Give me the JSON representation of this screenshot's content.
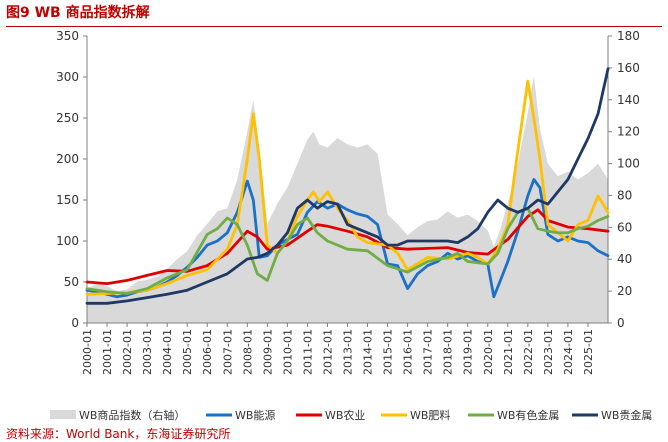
{
  "title": "图9  WB 商品指数拆解",
  "source": "资料来源：World Bank，东海证券研究所",
  "chart_data": {
    "type": "line",
    "x": [
      "2000-01",
      "2001-01",
      "2002-01",
      "2003-01",
      "2004-01",
      "2005-01",
      "2006-01",
      "2007-01",
      "2008-01",
      "2009-01",
      "2010-01",
      "2011-01",
      "2012-01",
      "2013-01",
      "2014-01",
      "2015-01",
      "2016-01",
      "2017-01",
      "2018-01",
      "2019-01",
      "2020-01",
      "2021-01",
      "2022-01",
      "2023-01",
      "2024-01",
      "2025-01"
    ],
    "left_axis": {
      "min": 0,
      "max": 350,
      "ticks": [
        0,
        50,
        100,
        150,
        200,
        250,
        300,
        350
      ]
    },
    "right_axis": {
      "min": 0,
      "max": 180,
      "ticks": [
        0,
        20,
        40,
        60,
        80,
        100,
        120,
        140,
        160,
        180
      ]
    },
    "series": [
      {
        "name": "WB商品指数（右轴）",
        "type": "area",
        "axis": "right",
        "color": "#d9d9d9",
        "points": [
          [
            0,
            21
          ],
          [
            0.5,
            25
          ],
          [
            1,
            23
          ],
          [
            1.5,
            20
          ],
          [
            2,
            21
          ],
          [
            2.5,
            26
          ],
          [
            3,
            27
          ],
          [
            3.5,
            29
          ],
          [
            4,
            34
          ],
          [
            4.5,
            40
          ],
          [
            5,
            45
          ],
          [
            5.5,
            55
          ],
          [
            6,
            62
          ],
          [
            6.5,
            70
          ],
          [
            7,
            72
          ],
          [
            7.5,
            90
          ],
          [
            8,
            120
          ],
          [
            8.3,
            140
          ],
          [
            8.6,
            110
          ],
          [
            9,
            62
          ],
          [
            9.5,
            75
          ],
          [
            10,
            85
          ],
          [
            10.5,
            100
          ],
          [
            11,
            115
          ],
          [
            11.3,
            120
          ],
          [
            11.6,
            112
          ],
          [
            12,
            110
          ],
          [
            12.5,
            116
          ],
          [
            13,
            112
          ],
          [
            13.5,
            110
          ],
          [
            14,
            112
          ],
          [
            14.5,
            106
          ],
          [
            15,
            68
          ],
          [
            15.5,
            62
          ],
          [
            16,
            55
          ],
          [
            16.5,
            60
          ],
          [
            17,
            64
          ],
          [
            17.5,
            65
          ],
          [
            18,
            70
          ],
          [
            18.5,
            66
          ],
          [
            19,
            68
          ],
          [
            19.5,
            64
          ],
          [
            20,
            58
          ],
          [
            20.3,
            48
          ],
          [
            20.6,
            58
          ],
          [
            21,
            75
          ],
          [
            21.5,
            100
          ],
          [
            22,
            132
          ],
          [
            22.3,
            155
          ],
          [
            22.6,
            122
          ],
          [
            23,
            100
          ],
          [
            23.5,
            92
          ],
          [
            24,
            95
          ],
          [
            24.5,
            90
          ],
          [
            25,
            94
          ],
          [
            25.5,
            100
          ],
          [
            26,
            90
          ]
        ]
      },
      {
        "name": "WB能源",
        "type": "line",
        "axis": "left",
        "color": "#1b70c8",
        "points": [
          [
            0,
            40
          ],
          [
            0.5,
            38
          ],
          [
            1,
            35
          ],
          [
            1.5,
            32
          ],
          [
            2,
            34
          ],
          [
            2.5,
            38
          ],
          [
            3,
            40
          ],
          [
            3.5,
            44
          ],
          [
            4,
            50
          ],
          [
            4.5,
            58
          ],
          [
            5,
            68
          ],
          [
            5.5,
            80
          ],
          [
            6,
            95
          ],
          [
            6.5,
            100
          ],
          [
            7,
            110
          ],
          [
            7.5,
            135
          ],
          [
            8,
            173
          ],
          [
            8.3,
            150
          ],
          [
            8.6,
            80
          ],
          [
            9,
            82
          ],
          [
            9.5,
            95
          ],
          [
            10,
            102
          ],
          [
            10.5,
            108
          ],
          [
            11,
            135
          ],
          [
            11.5,
            148
          ],
          [
            12,
            140
          ],
          [
            12.5,
            145
          ],
          [
            13,
            138
          ],
          [
            13.5,
            133
          ],
          [
            14,
            130
          ],
          [
            14.5,
            120
          ],
          [
            15,
            72
          ],
          [
            15.5,
            70
          ],
          [
            16,
            42
          ],
          [
            16.5,
            60
          ],
          [
            17,
            70
          ],
          [
            17.5,
            75
          ],
          [
            18,
            85
          ],
          [
            18.5,
            78
          ],
          [
            19,
            82
          ],
          [
            19.5,
            75
          ],
          [
            20,
            72
          ],
          [
            20.3,
            32
          ],
          [
            20.6,
            50
          ],
          [
            21,
            75
          ],
          [
            21.5,
            112
          ],
          [
            22,
            155
          ],
          [
            22.3,
            175
          ],
          [
            22.6,
            165
          ],
          [
            23,
            108
          ],
          [
            23.5,
            100
          ],
          [
            24,
            105
          ],
          [
            24.5,
            100
          ],
          [
            25,
            98
          ],
          [
            25.5,
            88
          ],
          [
            26,
            82
          ]
        ]
      },
      {
        "name": "WB农业",
        "type": "line",
        "axis": "left",
        "color": "#e00000",
        "points": [
          [
            0,
            50
          ],
          [
            1,
            48
          ],
          [
            2,
            52
          ],
          [
            3,
            58
          ],
          [
            4,
            64
          ],
          [
            5,
            63
          ],
          [
            6,
            70
          ],
          [
            7,
            85
          ],
          [
            8,
            112
          ],
          [
            8.5,
            105
          ],
          [
            9,
            90
          ],
          [
            10,
            95
          ],
          [
            11,
            112
          ],
          [
            11.5,
            120
          ],
          [
            12,
            118
          ],
          [
            13,
            112
          ],
          [
            14,
            105
          ],
          [
            15,
            92
          ],
          [
            16,
            90
          ],
          [
            17,
            91
          ],
          [
            18,
            92
          ],
          [
            19,
            86
          ],
          [
            20,
            84
          ],
          [
            21,
            102
          ],
          [
            22,
            130
          ],
          [
            22.5,
            138
          ],
          [
            23,
            125
          ],
          [
            24,
            117
          ],
          [
            25,
            115
          ],
          [
            26,
            112
          ]
        ]
      },
      {
        "name": "WB肥料",
        "type": "line",
        "axis": "left",
        "color": "#ffc000",
        "points": [
          [
            0,
            35
          ],
          [
            1,
            36
          ],
          [
            2,
            37
          ],
          [
            3,
            40
          ],
          [
            4,
            48
          ],
          [
            5,
            58
          ],
          [
            6,
            65
          ],
          [
            7,
            90
          ],
          [
            7.5,
            120
          ],
          [
            8,
            200
          ],
          [
            8.3,
            255
          ],
          [
            8.6,
            200
          ],
          [
            9,
            95
          ],
          [
            9.5,
            85
          ],
          [
            10,
            100
          ],
          [
            10.5,
            130
          ],
          [
            11,
            150
          ],
          [
            11.3,
            160
          ],
          [
            11.6,
            148
          ],
          [
            12,
            160
          ],
          [
            12.5,
            140
          ],
          [
            13,
            125
          ],
          [
            13.5,
            105
          ],
          [
            14,
            98
          ],
          [
            15,
            95
          ],
          [
            15.5,
            85
          ],
          [
            16,
            65
          ],
          [
            17,
            80
          ],
          [
            18,
            78
          ],
          [
            19,
            85
          ],
          [
            19.5,
            80
          ],
          [
            20,
            72
          ],
          [
            20.5,
            90
          ],
          [
            21,
            120
          ],
          [
            21.5,
            210
          ],
          [
            22,
            295
          ],
          [
            22.3,
            250
          ],
          [
            22.6,
            200
          ],
          [
            23,
            120
          ],
          [
            23.5,
            110
          ],
          [
            24,
            100
          ],
          [
            24.5,
            120
          ],
          [
            25,
            125
          ],
          [
            25.5,
            155
          ],
          [
            26,
            135
          ]
        ]
      },
      {
        "name": "WB有色金属",
        "type": "line",
        "axis": "left",
        "color": "#70ad47",
        "points": [
          [
            0,
            42
          ],
          [
            1,
            38
          ],
          [
            2,
            36
          ],
          [
            3,
            42
          ],
          [
            4,
            55
          ],
          [
            5,
            65
          ],
          [
            6,
            108
          ],
          [
            6.5,
            115
          ],
          [
            7,
            128
          ],
          [
            7.5,
            120
          ],
          [
            8,
            95
          ],
          [
            8.5,
            60
          ],
          [
            9,
            52
          ],
          [
            9.5,
            85
          ],
          [
            10,
            100
          ],
          [
            10.5,
            120
          ],
          [
            11,
            128
          ],
          [
            11.5,
            110
          ],
          [
            12,
            100
          ],
          [
            13,
            90
          ],
          [
            14,
            88
          ],
          [
            15,
            70
          ],
          [
            16,
            62
          ],
          [
            17,
            75
          ],
          [
            18,
            80
          ],
          [
            18.5,
            85
          ],
          [
            19,
            75
          ],
          [
            20,
            72
          ],
          [
            20.5,
            85
          ],
          [
            21,
            115
          ],
          [
            21.5,
            135
          ],
          [
            22,
            140
          ],
          [
            22.5,
            115
          ],
          [
            23,
            112
          ],
          [
            23.5,
            110
          ],
          [
            24,
            110
          ],
          [
            24.5,
            115
          ],
          [
            25,
            118
          ],
          [
            25.5,
            125
          ],
          [
            26,
            130
          ]
        ]
      },
      {
        "name": "WB贵金属",
        "type": "line",
        "axis": "left",
        "color": "#1f3864",
        "points": [
          [
            0,
            24
          ],
          [
            1,
            24
          ],
          [
            2,
            27
          ],
          [
            3,
            31
          ],
          [
            4,
            35
          ],
          [
            5,
            40
          ],
          [
            6,
            50
          ],
          [
            7,
            60
          ],
          [
            8,
            78
          ],
          [
            8.5,
            80
          ],
          [
            9,
            85
          ],
          [
            9.5,
            95
          ],
          [
            10,
            110
          ],
          [
            10.5,
            140
          ],
          [
            11,
            150
          ],
          [
            11.5,
            140
          ],
          [
            12,
            148
          ],
          [
            12.5,
            145
          ],
          [
            13,
            120
          ],
          [
            13.5,
            115
          ],
          [
            14,
            110
          ],
          [
            14.5,
            105
          ],
          [
            15,
            95
          ],
          [
            15.5,
            95
          ],
          [
            16,
            100
          ],
          [
            17,
            100
          ],
          [
            18,
            100
          ],
          [
            18.5,
            98
          ],
          [
            19,
            105
          ],
          [
            19.5,
            115
          ],
          [
            20,
            135
          ],
          [
            20.5,
            150
          ],
          [
            21,
            140
          ],
          [
            21.5,
            135
          ],
          [
            22,
            140
          ],
          [
            22.5,
            150
          ],
          [
            23,
            145
          ],
          [
            23.5,
            160
          ],
          [
            24,
            175
          ],
          [
            24.5,
            200
          ],
          [
            25,
            225
          ],
          [
            25.5,
            255
          ],
          [
            26,
            310
          ]
        ]
      }
    ]
  }
}
